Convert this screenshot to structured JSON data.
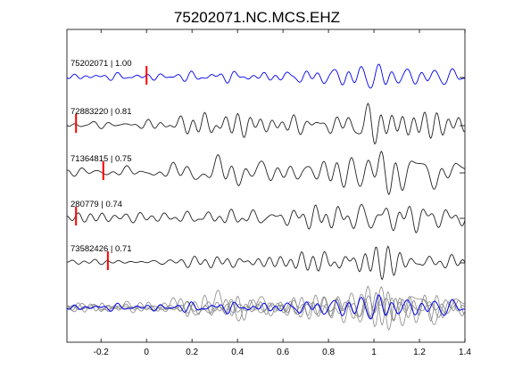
{
  "chart_data": {
    "type": "line",
    "title": "75202071.NC.MCS.EHZ",
    "xlabel": "",
    "ylabel": "",
    "xlim": [
      -0.35,
      1.4
    ],
    "xticks": [
      -0.2,
      0,
      0.2,
      0.4,
      0.6,
      0.8,
      1,
      1.2,
      1.4
    ],
    "xtick_labels": [
      "-0.2",
      "0",
      "0.2",
      "0.4",
      "0.6",
      "0.8",
      "1",
      "1.2",
      "1.4"
    ],
    "grid": false,
    "colors": {
      "reference": "#0000ee",
      "neighbor": "#222222",
      "overlay_neighbor": "#888888",
      "pick": "#ff0000"
    },
    "series": [
      {
        "name": "75202071 | 1.00",
        "pick_time": 0.0,
        "role": "reference"
      },
      {
        "name": "72883220 | 0.81",
        "pick_time": -0.31,
        "role": "neighbor"
      },
      {
        "name": "71364815 | 0.75",
        "pick_time": -0.19,
        "role": "neighbor"
      },
      {
        "name": "280779 | 0.74",
        "pick_time": -0.31,
        "role": "neighbor"
      },
      {
        "name": "73582426 | 0.71",
        "pick_time": -0.17,
        "role": "neighbor"
      }
    ],
    "overlay": {
      "description_visible": false
    }
  }
}
